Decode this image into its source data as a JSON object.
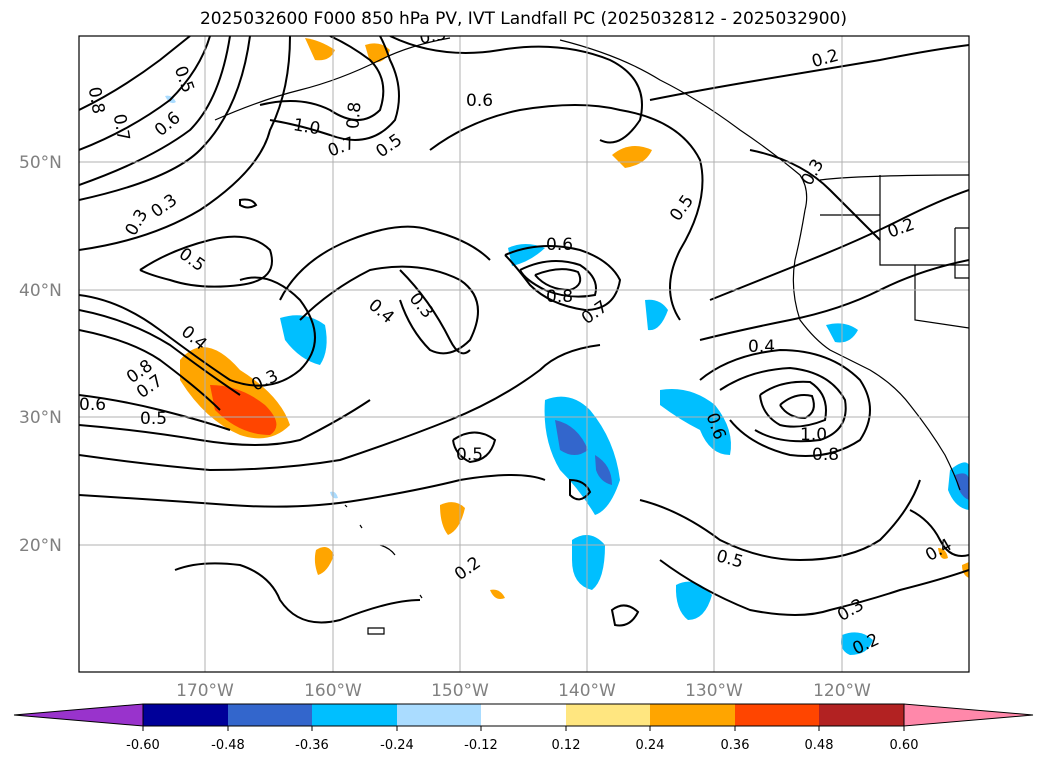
{
  "title": "2025032600 F000 850 hPa PV, IVT Landfall PC (2025032812 - 2025032900)",
  "map": {
    "lat_labels": [
      "50°N",
      "40°N",
      "30°N",
      "20°N"
    ],
    "lon_labels": [
      "170°W",
      "160°W",
      "150°W",
      "140°W",
      "130°W",
      "120°W"
    ],
    "contour_labels": [
      "0.6",
      "0.5",
      "0.8",
      "0.7",
      "0.6",
      "1.0",
      "0.7",
      "0.8",
      "0.5",
      "0.5",
      "0.3",
      "0.3",
      "0.5",
      "0.6",
      "0.8",
      "0.7",
      "0.5",
      "0.4",
      "0.3",
      "0.4",
      "0.8",
      "0.7",
      "0.6",
      "0.5",
      "0.3",
      "0.5",
      "0.2",
      "0.6",
      "1.0",
      "0.8",
      "0.4",
      "0.5",
      "0.3",
      "0.2",
      "0.2",
      "0.3",
      "0.2",
      "0.4"
    ],
    "colors": {
      "land_line": "#000000",
      "grid": "#b0b0b0"
    }
  },
  "colorbar": {
    "ticks": [
      "-0.60",
      "-0.48",
      "-0.36",
      "-0.24",
      "-0.12",
      "0.12",
      "0.24",
      "0.36",
      "0.48",
      "0.60"
    ],
    "colors": [
      "#9933cc",
      "#000099",
      "#3366cc",
      "#00bfff",
      "#aadcff",
      "#ffffff",
      "#ffe680",
      "#ffa500",
      "#ff4500",
      "#b22222",
      "#ff88aa"
    ]
  }
}
